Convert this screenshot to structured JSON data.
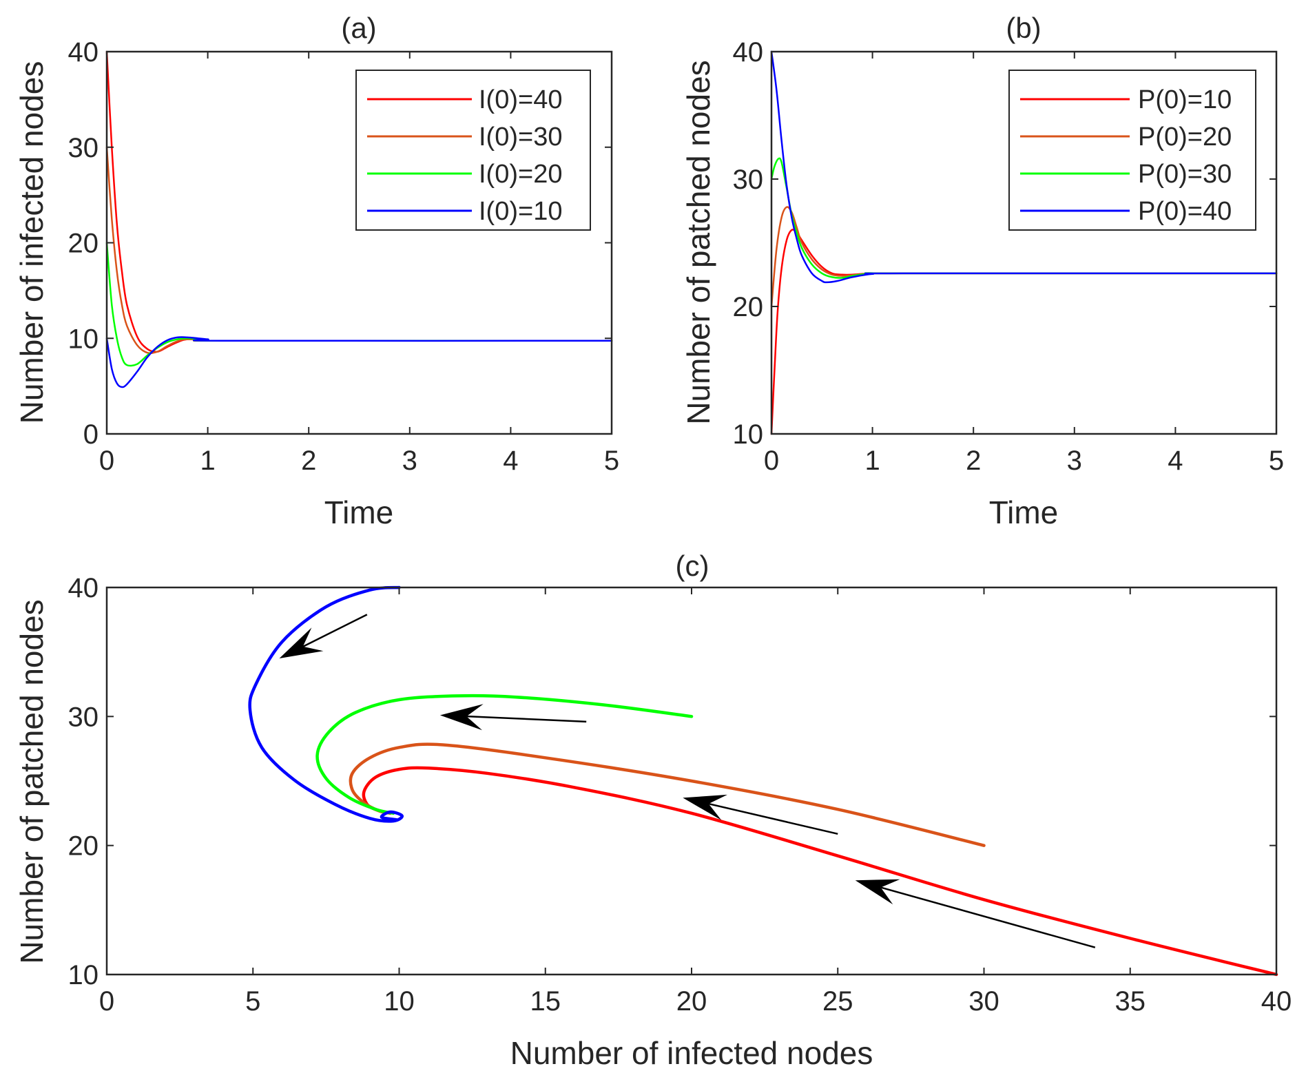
{
  "chart_data": [
    {
      "id": "a",
      "type": "line",
      "title": "(a)",
      "xlabel": "Time",
      "ylabel": "Number of infected nodes",
      "xlim": [
        0,
        5
      ],
      "ylim": [
        0,
        40
      ],
      "xticks": [
        0,
        1,
        2,
        3,
        4,
        5
      ],
      "yticks": [
        0,
        10,
        20,
        30,
        40
      ],
      "legend_position": "top-right",
      "series": [
        {
          "name": "I(0)=40",
          "color": "#ff0000",
          "points": [
            [
              0,
              40
            ],
            [
              0.05,
              30
            ],
            [
              0.1,
              22
            ],
            [
              0.15,
              17
            ],
            [
              0.2,
              13.5
            ],
            [
              0.3,
              10.2
            ],
            [
              0.4,
              8.9
            ],
            [
              0.5,
              8.6
            ],
            [
              0.6,
              9.1
            ],
            [
              0.7,
              9.6
            ],
            [
              0.8,
              9.9
            ],
            [
              1.0,
              9.8
            ],
            [
              1.2,
              9.75
            ],
            [
              5,
              9.75
            ]
          ]
        },
        {
          "name": "I(0)=30",
          "color": "#d95319",
          "points": [
            [
              0,
              30
            ],
            [
              0.05,
              22.5
            ],
            [
              0.1,
              17
            ],
            [
              0.15,
              13.5
            ],
            [
              0.2,
              11.3
            ],
            [
              0.3,
              9.3
            ],
            [
              0.4,
              8.5
            ],
            [
              0.5,
              8.6
            ],
            [
              0.6,
              9.2
            ],
            [
              0.7,
              9.7
            ],
            [
              0.8,
              9.9
            ],
            [
              1.0,
              9.8
            ],
            [
              1.2,
              9.75
            ],
            [
              5,
              9.75
            ]
          ]
        },
        {
          "name": "I(0)=20",
          "color": "#00ff00",
          "points": [
            [
              0,
              20
            ],
            [
              0.05,
              13.5
            ],
            [
              0.1,
              10
            ],
            [
              0.15,
              8
            ],
            [
              0.2,
              7.2
            ],
            [
              0.3,
              7.3
            ],
            [
              0.4,
              8.2
            ],
            [
              0.5,
              9
            ],
            [
              0.6,
              9.6
            ],
            [
              0.7,
              9.9
            ],
            [
              0.8,
              10
            ],
            [
              1.0,
              9.85
            ],
            [
              1.2,
              9.75
            ],
            [
              5,
              9.75
            ]
          ]
        },
        {
          "name": "I(0)=10",
          "color": "#0000ff",
          "points": [
            [
              0,
              10
            ],
            [
              0.05,
              6.8
            ],
            [
              0.1,
              5.3
            ],
            [
              0.15,
              4.9
            ],
            [
              0.2,
              5.2
            ],
            [
              0.3,
              6.5
            ],
            [
              0.4,
              8
            ],
            [
              0.5,
              9.1
            ],
            [
              0.6,
              9.8
            ],
            [
              0.7,
              10.1
            ],
            [
              0.8,
              10.1
            ],
            [
              1.0,
              9.9
            ],
            [
              1.2,
              9.75
            ],
            [
              5,
              9.75
            ]
          ]
        }
      ]
    },
    {
      "id": "b",
      "type": "line",
      "title": "(b)",
      "xlabel": "Time",
      "ylabel": "Number of patched nodes",
      "xlim": [
        0,
        5
      ],
      "ylim": [
        10,
        40
      ],
      "xticks": [
        0,
        1,
        2,
        3,
        4,
        5
      ],
      "yticks": [
        10,
        20,
        30,
        40
      ],
      "legend_position": "top-right",
      "series": [
        {
          "name": "P(0)=10",
          "color": "#ff0000",
          "points": [
            [
              0,
              10
            ],
            [
              0.03,
              15
            ],
            [
              0.06,
              19.5
            ],
            [
              0.1,
              23
            ],
            [
              0.15,
              25.2
            ],
            [
              0.2,
              26
            ],
            [
              0.25,
              25.8
            ],
            [
              0.3,
              25.2
            ],
            [
              0.4,
              24
            ],
            [
              0.5,
              23.1
            ],
            [
              0.6,
              22.6
            ],
            [
              0.7,
              22.5
            ],
            [
              0.8,
              22.5
            ],
            [
              1.0,
              22.6
            ],
            [
              1.3,
              22.6
            ],
            [
              5,
              22.6
            ]
          ]
        },
        {
          "name": "P(0)=20",
          "color": "#d95319",
          "points": [
            [
              0,
              20
            ],
            [
              0.05,
              24.5
            ],
            [
              0.1,
              27
            ],
            [
              0.15,
              27.8
            ],
            [
              0.2,
              27.4
            ],
            [
              0.25,
              26.2
            ],
            [
              0.3,
              25
            ],
            [
              0.4,
              23.7
            ],
            [
              0.5,
              22.9
            ],
            [
              0.6,
              22.5
            ],
            [
              0.7,
              22.4
            ],
            [
              0.8,
              22.45
            ],
            [
              1.0,
              22.6
            ],
            [
              1.3,
              22.6
            ],
            [
              5,
              22.6
            ]
          ]
        },
        {
          "name": "P(0)=30",
          "color": "#00ff00",
          "points": [
            [
              0,
              30
            ],
            [
              0.03,
              31
            ],
            [
              0.07,
              31.6
            ],
            [
              0.1,
              31.3
            ],
            [
              0.15,
              29.3
            ],
            [
              0.2,
              27.2
            ],
            [
              0.25,
              25.8
            ],
            [
              0.3,
              24.6
            ],
            [
              0.4,
              23.3
            ],
            [
              0.5,
              22.6
            ],
            [
              0.6,
              22.3
            ],
            [
              0.7,
              22.25
            ],
            [
              0.8,
              22.4
            ],
            [
              1.0,
              22.6
            ],
            [
              1.3,
              22.6
            ],
            [
              5,
              22.6
            ]
          ]
        },
        {
          "name": "P(0)=40",
          "color": "#0000ff",
          "points": [
            [
              0,
              40
            ],
            [
              0.05,
              37
            ],
            [
              0.1,
              33
            ],
            [
              0.15,
              29.5
            ],
            [
              0.2,
              27
            ],
            [
              0.25,
              25.3
            ],
            [
              0.3,
              24
            ],
            [
              0.4,
              22.6
            ],
            [
              0.5,
              22
            ],
            [
              0.55,
              21.9
            ],
            [
              0.65,
              22
            ],
            [
              0.8,
              22.3
            ],
            [
              1.0,
              22.55
            ],
            [
              1.3,
              22.6
            ],
            [
              5,
              22.6
            ]
          ]
        }
      ]
    },
    {
      "id": "c",
      "type": "line",
      "title": "(c)",
      "xlabel": "Number of infected nodes",
      "ylabel": "Number of patched nodes",
      "xlim": [
        0,
        40
      ],
      "ylim": [
        10,
        40
      ],
      "xticks": [
        0,
        5,
        10,
        15,
        20,
        25,
        30,
        35,
        40
      ],
      "yticks": [
        10,
        20,
        30,
        40
      ],
      "series": [
        {
          "name": "I(0)=40, P(0)=10",
          "color": "#ff0000",
          "points": [
            [
              40,
              10
            ],
            [
              35,
              12.8
            ],
            [
              30,
              15.8
            ],
            [
              25,
              19.2
            ],
            [
              20,
              22.5
            ],
            [
              16,
              24.5
            ],
            [
              13,
              25.6
            ],
            [
              11,
              26
            ],
            [
              10,
              25.9
            ],
            [
              9.2,
              25.3
            ],
            [
              8.8,
              24.2
            ],
            [
              8.9,
              23.2
            ],
            [
              9.3,
              22.7
            ],
            [
              9.7,
              22.5
            ]
          ]
        },
        {
          "name": "I(0)=30, P(0)=20",
          "color": "#d95319",
          "points": [
            [
              30,
              20
            ],
            [
              25,
              22.8
            ],
            [
              20,
              25
            ],
            [
              15,
              26.8
            ],
            [
              11.5,
              27.8
            ],
            [
              10,
              27.6
            ],
            [
              9,
              26.8
            ],
            [
              8.4,
              25.6
            ],
            [
              8.4,
              24.3
            ],
            [
              8.8,
              23.3
            ],
            [
              9.3,
              22.7
            ],
            [
              9.7,
              22.5
            ]
          ]
        },
        {
          "name": "I(0)=20, P(0)=30",
          "color": "#00ff00",
          "points": [
            [
              20,
              30
            ],
            [
              17,
              30.9
            ],
            [
              14,
              31.5
            ],
            [
              12,
              31.6
            ],
            [
              10,
              31.3
            ],
            [
              8.5,
              30.3
            ],
            [
              7.6,
              28.8
            ],
            [
              7.2,
              27
            ],
            [
              7.5,
              25.2
            ],
            [
              8.3,
              23.7
            ],
            [
              9.2,
              22.8
            ],
            [
              9.8,
              22.5
            ]
          ]
        },
        {
          "name": "I(0)=10, P(0)=40",
          "color": "#0000ff",
          "points": [
            [
              10,
              40
            ],
            [
              9,
              39.8
            ],
            [
              7.5,
              38.5
            ],
            [
              6,
              35.8
            ],
            [
              5.1,
              32.5
            ],
            [
              4.9,
              30.5
            ],
            [
              5.3,
              27.6
            ],
            [
              6.4,
              25.1
            ],
            [
              7.8,
              23.2
            ],
            [
              9,
              22.1
            ],
            [
              9.8,
              21.9
            ],
            [
              10.1,
              22.3
            ],
            [
              9.7,
              22.6
            ],
            [
              9.4,
              22.2
            ],
            [
              9.9,
              22
            ]
          ]
        }
      ],
      "arrows": [
        {
          "from": [
            8.9,
            37.9
          ],
          "to": [
            5.9,
            34.5
          ]
        },
        {
          "from": [
            16.4,
            29.6
          ],
          "to": [
            11.4,
            30.1
          ]
        },
        {
          "from": [
            25,
            20.9
          ],
          "to": [
            19.7,
            23.7
          ]
        },
        {
          "from": [
            33.8,
            12.1
          ],
          "to": [
            25.6,
            17.3
          ]
        }
      ]
    }
  ]
}
